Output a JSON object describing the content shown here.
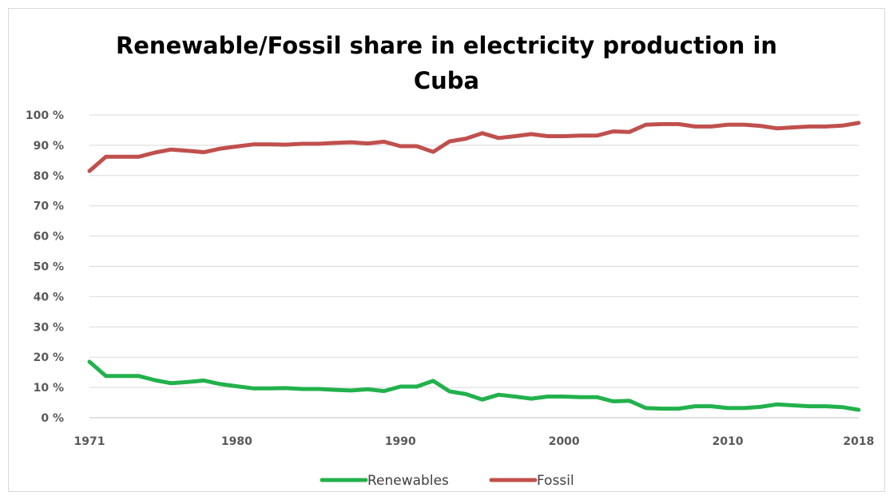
{
  "chart_data": {
    "type": "line",
    "title_line1": "Renewable/Fossil share in electricity production in",
    "title_line2": "Cuba",
    "xlabel": "",
    "ylabel": "",
    "xlim": [
      1971,
      2018
    ],
    "ylim": [
      0,
      100
    ],
    "x_ticks": [
      1971,
      1980,
      1990,
      2000,
      2010,
      2018
    ],
    "y_ticks": [
      0,
      10,
      20,
      30,
      40,
      50,
      60,
      70,
      80,
      90,
      100
    ],
    "y_tick_suffix": " %",
    "grid": "horizontal",
    "legend_position": "bottom",
    "x": [
      1971,
      1972,
      1973,
      1974,
      1975,
      1976,
      1977,
      1978,
      1979,
      1980,
      1981,
      1982,
      1983,
      1984,
      1985,
      1986,
      1987,
      1988,
      1989,
      1990,
      1991,
      1992,
      1993,
      1994,
      1995,
      1996,
      1997,
      1998,
      1999,
      2000,
      2001,
      2002,
      2003,
      2004,
      2005,
      2006,
      2007,
      2008,
      2009,
      2010,
      2011,
      2012,
      2013,
      2014,
      2015,
      2016,
      2017,
      2018
    ],
    "series": [
      {
        "name": "Renewables",
        "color": "#22b14c",
        "values": [
          18.5,
          13.8,
          13.8,
          13.8,
          12.4,
          11.4,
          11.8,
          12.3,
          11.1,
          10.4,
          9.7,
          9.7,
          9.8,
          9.5,
          9.5,
          9.2,
          9.0,
          9.4,
          8.8,
          10.3,
          10.3,
          12.2,
          8.7,
          7.8,
          6.0,
          7.6,
          7.0,
          6.3,
          7.0,
          7.0,
          6.8,
          6.8,
          5.4,
          5.6,
          3.2,
          3.0,
          3.0,
          3.8,
          3.8,
          3.2,
          3.2,
          3.6,
          4.4,
          4.1,
          3.8,
          3.8,
          3.5,
          2.6
        ]
      },
      {
        "name": "Fossil",
        "color": "#c0504d",
        "values": [
          81.5,
          86.2,
          86.2,
          86.2,
          87.6,
          88.6,
          88.2,
          87.7,
          88.9,
          89.6,
          90.3,
          90.3,
          90.2,
          90.5,
          90.5,
          90.8,
          91.0,
          90.6,
          91.2,
          89.7,
          89.7,
          87.8,
          91.3,
          92.2,
          94.0,
          92.4,
          93.0,
          93.7,
          93.0,
          93.0,
          93.2,
          93.2,
          94.6,
          94.4,
          96.8,
          97.0,
          97.0,
          96.2,
          96.2,
          96.8,
          96.8,
          96.4,
          95.6,
          95.9,
          96.2,
          96.2,
          96.5,
          97.4
        ]
      }
    ]
  }
}
